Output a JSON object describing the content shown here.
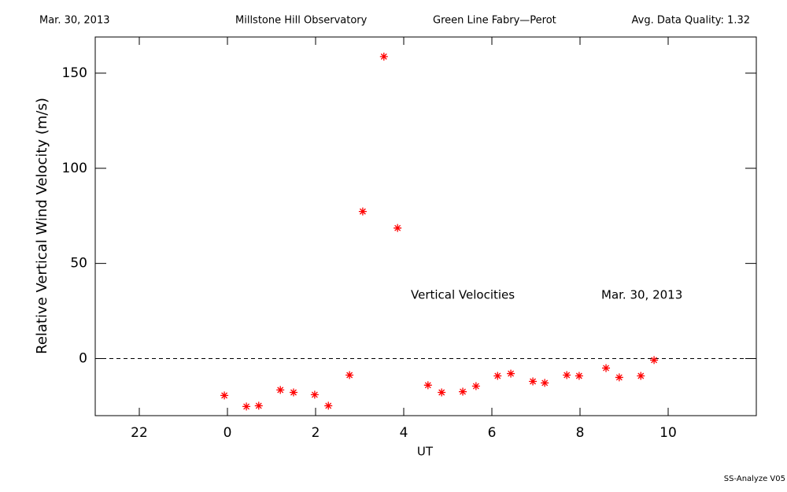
{
  "chart_data": {
    "type": "scatter",
    "header": [
      "Mar. 30, 2013",
      "Millstone Hill Observatory",
      "Green Line Fabry—Perot",
      "Avg. Data Quality: 1.32"
    ],
    "footer": "SS-Analyze V05",
    "annotations": [
      "Vertical Velocities",
      "Mar. 30, 2013"
    ],
    "xlabel": "UT",
    "ylabel": "Relative Vertical Wind Velocity (m/s)",
    "xlim": [
      -3,
      12
    ],
    "ylim": [
      -30,
      169
    ],
    "xticks": [
      {
        "value": -2,
        "label": "22"
      },
      0,
      2,
      4,
      6,
      8,
      10
    ],
    "yticks": [
      0,
      50,
      100,
      150
    ],
    "hline": 0,
    "color": "#ff0000",
    "x": [
      -0.07,
      0.43,
      0.71,
      1.2,
      1.5,
      1.98,
      2.29,
      2.77,
      3.07,
      3.55,
      3.86,
      4.55,
      4.86,
      5.34,
      5.64,
      6.13,
      6.43,
      6.93,
      7.2,
      7.7,
      7.98,
      8.59,
      8.89,
      9.38,
      9.68
    ],
    "values": [
      -19.4,
      -25.2,
      -24.8,
      -16.5,
      -17.8,
      -19,
      -24.8,
      -8.7,
      77.3,
      158.7,
      68.6,
      -14,
      -17.8,
      -17.4,
      -14.5,
      -9.1,
      -7.9,
      -12,
      -12.8,
      -8.7,
      -9.1,
      -5,
      -9.9,
      -9.1,
      -0.8
    ]
  }
}
